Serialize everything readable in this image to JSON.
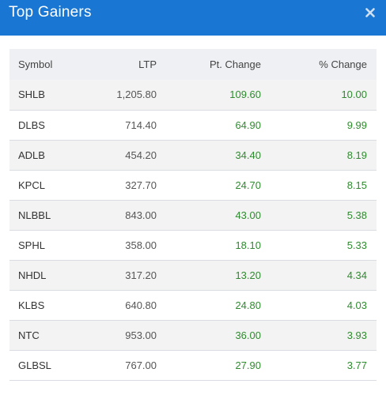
{
  "modal": {
    "title": "Top Gainers",
    "close_icon": "close-icon"
  },
  "colors": {
    "header_bg": "#1976d2",
    "positive": "#2e8b2e"
  },
  "table": {
    "columns": [
      "Symbol",
      "LTP",
      "Pt. Change",
      "% Change"
    ],
    "rows": [
      {
        "symbol": "SHLB",
        "ltp": "1,205.80",
        "pt_change": "109.60",
        "pct_change": "10.00"
      },
      {
        "symbol": "DLBS",
        "ltp": "714.40",
        "pt_change": "64.90",
        "pct_change": "9.99"
      },
      {
        "symbol": "ADLB",
        "ltp": "454.20",
        "pt_change": "34.40",
        "pct_change": "8.19"
      },
      {
        "symbol": "KPCL",
        "ltp": "327.70",
        "pt_change": "24.70",
        "pct_change": "8.15"
      },
      {
        "symbol": "NLBBL",
        "ltp": "843.00",
        "pt_change": "43.00",
        "pct_change": "5.38"
      },
      {
        "symbol": "SPHL",
        "ltp": "358.00",
        "pt_change": "18.10",
        "pct_change": "5.33"
      },
      {
        "symbol": "NHDL",
        "ltp": "317.20",
        "pt_change": "13.20",
        "pct_change": "4.34"
      },
      {
        "symbol": "KLBS",
        "ltp": "640.80",
        "pt_change": "24.80",
        "pct_change": "4.03"
      },
      {
        "symbol": "NTC",
        "ltp": "953.00",
        "pt_change": "36.00",
        "pct_change": "3.93"
      },
      {
        "symbol": "GLBSL",
        "ltp": "767.00",
        "pt_change": "27.90",
        "pct_change": "3.77"
      }
    ]
  }
}
